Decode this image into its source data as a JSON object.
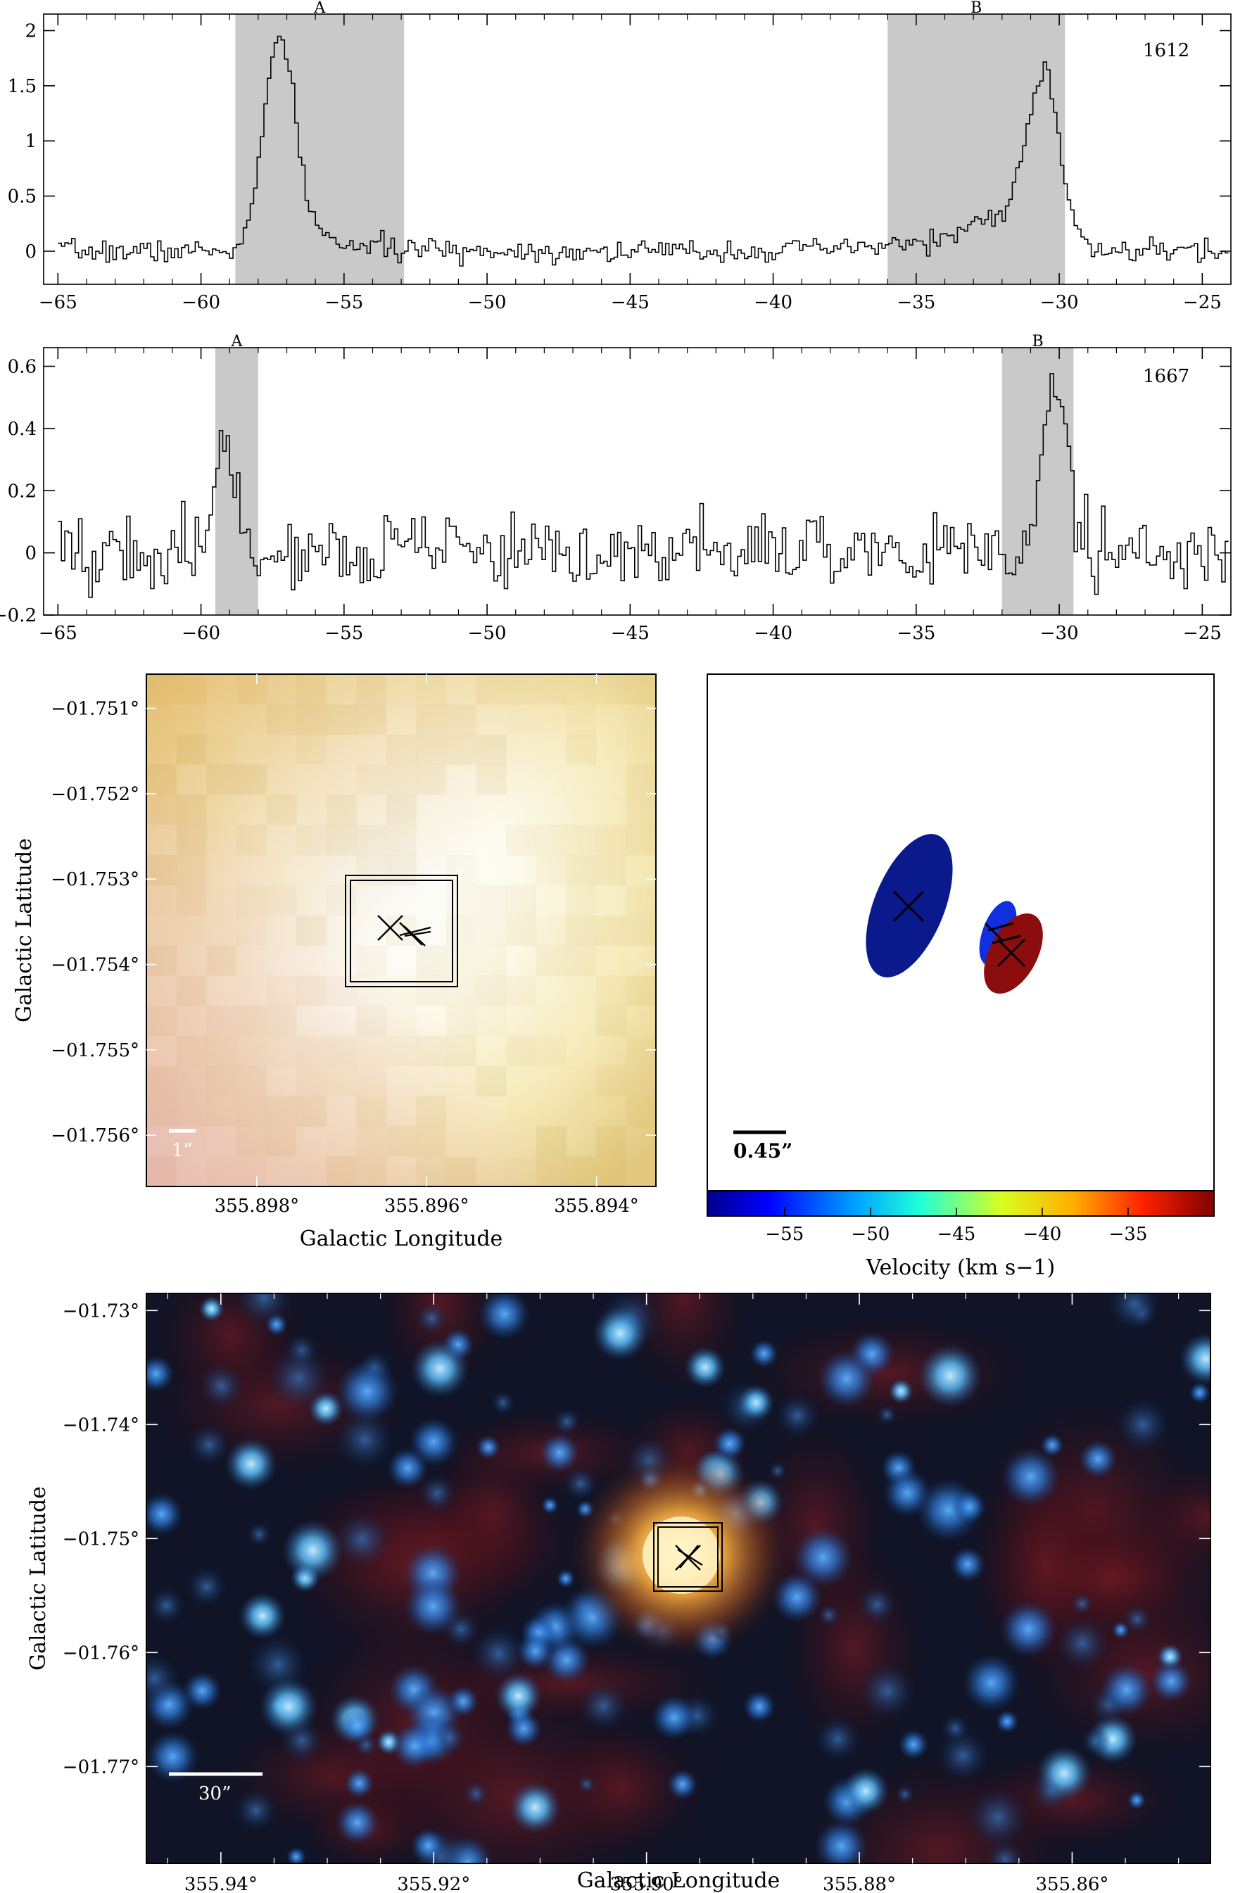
{
  "chart_data": [
    {
      "type": "line",
      "panel": "spectrum-1612",
      "panel_label": "1612",
      "x_ticks": [
        -65,
        -60,
        -55,
        -50,
        -45,
        -40,
        -35,
        -30,
        -25
      ],
      "x_tick_labels": [
        "−65",
        "−60",
        "−55",
        "−50",
        "−45",
        "−40",
        "−35",
        "−30",
        "−25"
      ],
      "y_ticks": [
        0,
        0.5,
        1,
        1.5,
        2
      ],
      "y_tick_labels": [
        "0",
        "0.5",
        "1",
        "1.5",
        "2"
      ],
      "xlim": [
        -65.5,
        -24
      ],
      "ylim": [
        -0.3,
        2.15
      ],
      "shaded_regions": [
        {
          "label": "A",
          "x0": -58.8,
          "x1": -52.9
        },
        {
          "label": "B",
          "x0": -36.0,
          "x1": -29.8
        }
      ],
      "peaks": [
        {
          "center": -57.3,
          "amplitude": 1.95,
          "width": 0.55
        },
        {
          "center": -30.6,
          "amplitude": 1.65,
          "width": 0.55
        }
      ],
      "noise_rms": 0.05
    },
    {
      "type": "line",
      "panel": "spectrum-1667",
      "panel_label": "1667",
      "x_ticks": [
        -65,
        -60,
        -55,
        -50,
        -45,
        -40,
        -35,
        -30,
        -25
      ],
      "x_tick_labels": [
        "−65",
        "−60",
        "−55",
        "−50",
        "−45",
        "−40",
        "−35",
        "−30",
        "−25"
      ],
      "y_ticks": [
        -0.2,
        0,
        0.2,
        0.4,
        0.6
      ],
      "y_tick_labels": [
        "−0.2",
        "0",
        "0.2",
        "0.4",
        "0.6"
      ],
      "xlim": [
        -65.5,
        -24
      ],
      "ylim": [
        -0.2,
        0.66
      ],
      "shaded_regions": [
        {
          "label": "A",
          "x0": -59.5,
          "x1": -58.0
        },
        {
          "label": "B",
          "x0": -32.0,
          "x1": -29.5
        }
      ],
      "peaks": [
        {
          "center": -59.2,
          "amplitude": 0.33,
          "width": 0.45
        },
        {
          "center": -30.2,
          "amplitude": 0.55,
          "width": 0.45
        }
      ],
      "noise_rms": 0.06
    },
    {
      "type": "heatmap",
      "panel": "zoom-image",
      "xlabel": "Galactic Longitude",
      "ylabel": "Galactic Latitude",
      "x_tick_labels": [
        "355.898°",
        "355.896°",
        "355.894°"
      ],
      "x_ticks": [
        355.898,
        355.896,
        355.894
      ],
      "y_tick_labels": [
        "−01.751°",
        "−01.752°",
        "−01.753°",
        "−01.754°",
        "−01.755°",
        "−01.756°"
      ],
      "y_ticks": [
        -1.751,
        -1.752,
        -1.753,
        -1.754,
        -1.755,
        -1.756
      ],
      "xlim": [
        355.8993,
        355.8933
      ],
      "ylim": [
        -1.7566,
        -1.7506
      ],
      "scalebar_label": "1”"
    },
    {
      "type": "scatter",
      "panel": "velocity-map",
      "xlabel": "Velocity (km s−1)",
      "scalebar_label": "0.45”",
      "colorbar_ticks": [
        -55,
        -50,
        -45,
        -40,
        -35
      ],
      "colorbar_tick_labels": [
        "−55",
        "−50",
        "−45",
        "−40",
        "−35"
      ],
      "colorbar_range": [
        -59.5,
        -30
      ],
      "ellipses": [
        {
          "velocity": -58.0,
          "color": "#0a1a8c"
        },
        {
          "velocity": -56.0,
          "color": "#1030e0"
        },
        {
          "velocity": -31.0,
          "color": "#8c0d0d"
        }
      ]
    },
    {
      "type": "heatmap",
      "panel": "wide-image",
      "xlabel": "Galactic Longitude",
      "ylabel": "Galactic Latitude",
      "x_tick_labels": [
        "355.94°",
        "355.92°",
        "355.90°",
        "355.88°",
        "355.86°"
      ],
      "x_ticks": [
        355.94,
        355.92,
        355.9,
        355.88,
        355.86
      ],
      "y_tick_labels": [
        "−01.73°",
        "−01.74°",
        "−01.75°",
        "−01.76°",
        "−01.77°"
      ],
      "y_ticks": [
        -1.73,
        -1.74,
        -1.75,
        -1.76,
        -1.77
      ],
      "xlim": [
        355.947,
        355.847
      ],
      "ylim": [
        -1.7785,
        -1.7285
      ],
      "scalebar_label": "30”"
    }
  ]
}
